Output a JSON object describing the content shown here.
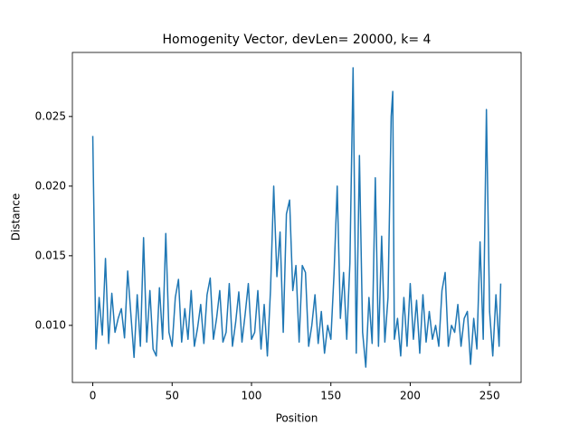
{
  "chart_data": {
    "type": "line",
    "title": "Homogenity Vector, devLen= 20000, k= 4",
    "x_label": "Position",
    "y_label": "Distance",
    "x": [
      0,
      2,
      4,
      6,
      8,
      10,
      12,
      14,
      16,
      18,
      20,
      22,
      24,
      26,
      28,
      30,
      32,
      34,
      36,
      38,
      40,
      42,
      44,
      46,
      48,
      50,
      52,
      54,
      56,
      58,
      60,
      62,
      64,
      66,
      68,
      70,
      72,
      74,
      76,
      78,
      80,
      82,
      84,
      86,
      88,
      90,
      92,
      94,
      96,
      98,
      100,
      102,
      104,
      106,
      108,
      110,
      112,
      114,
      116,
      118,
      120,
      122,
      124,
      126,
      128,
      130,
      132,
      134,
      136,
      138,
      140,
      142,
      144,
      146,
      148,
      150,
      152,
      154,
      156,
      158,
      160,
      162,
      164,
      166,
      168,
      170,
      172,
      174,
      176,
      178,
      180,
      182,
      184,
      186,
      188,
      189,
      190,
      192,
      194,
      196,
      198,
      200,
      202,
      204,
      206,
      208,
      210,
      212,
      214,
      216,
      218,
      220,
      222,
      224,
      226,
      228,
      230,
      232,
      234,
      236,
      238,
      240,
      242,
      244,
      246,
      248,
      250,
      252,
      254,
      256,
      257
    ],
    "series": [
      {
        "name": "Distance",
        "color": "#1f77b4",
        "values": [
          0.0236,
          0.0083,
          0.012,
          0.0093,
          0.0148,
          0.0087,
          0.0123,
          0.0095,
          0.0105,
          0.0112,
          0.0091,
          0.0139,
          0.0108,
          0.0077,
          0.0122,
          0.0085,
          0.0163,
          0.0088,
          0.0125,
          0.0083,
          0.0078,
          0.0127,
          0.009,
          0.0166,
          0.0095,
          0.0085,
          0.012,
          0.0133,
          0.0088,
          0.0112,
          0.009,
          0.0125,
          0.0085,
          0.0098,
          0.0115,
          0.0087,
          0.0122,
          0.0134,
          0.009,
          0.0105,
          0.0125,
          0.0088,
          0.0095,
          0.013,
          0.0085,
          0.0102,
          0.0124,
          0.0088,
          0.0108,
          0.013,
          0.009,
          0.0095,
          0.0125,
          0.0083,
          0.0115,
          0.0078,
          0.0126,
          0.02,
          0.0135,
          0.0167,
          0.0095,
          0.018,
          0.019,
          0.0125,
          0.0143,
          0.0088,
          0.0143,
          0.0138,
          0.0085,
          0.01,
          0.0122,
          0.0087,
          0.011,
          0.008,
          0.01,
          0.009,
          0.0137,
          0.02,
          0.0105,
          0.0138,
          0.009,
          0.0145,
          0.0285,
          0.008,
          0.0222,
          0.0095,
          0.007,
          0.012,
          0.0087,
          0.0206,
          0.0085,
          0.0164,
          0.0088,
          0.012,
          0.025,
          0.0268,
          0.009,
          0.0105,
          0.0078,
          0.012,
          0.0085,
          0.013,
          0.009,
          0.0118,
          0.008,
          0.0122,
          0.0088,
          0.011,
          0.009,
          0.01,
          0.0085,
          0.0125,
          0.0138,
          0.0085,
          0.01,
          0.0095,
          0.0115,
          0.0085,
          0.0105,
          0.011,
          0.0072,
          0.0105,
          0.0083,
          0.016,
          0.009,
          0.0255,
          0.011,
          0.0078,
          0.0122,
          0.0085,
          0.013
        ]
      }
    ],
    "xlim": [
      -12.85,
      269.85
    ],
    "ylim": [
      0.0059,
      0.0296
    ],
    "xticks": [
      0,
      50,
      100,
      150,
      200,
      250
    ],
    "yticks": [
      {
        "value": 0.01,
        "label": "0.010"
      },
      0.015,
      {
        "value": 0.02,
        "label": "0.020"
      },
      0.025
    ]
  }
}
